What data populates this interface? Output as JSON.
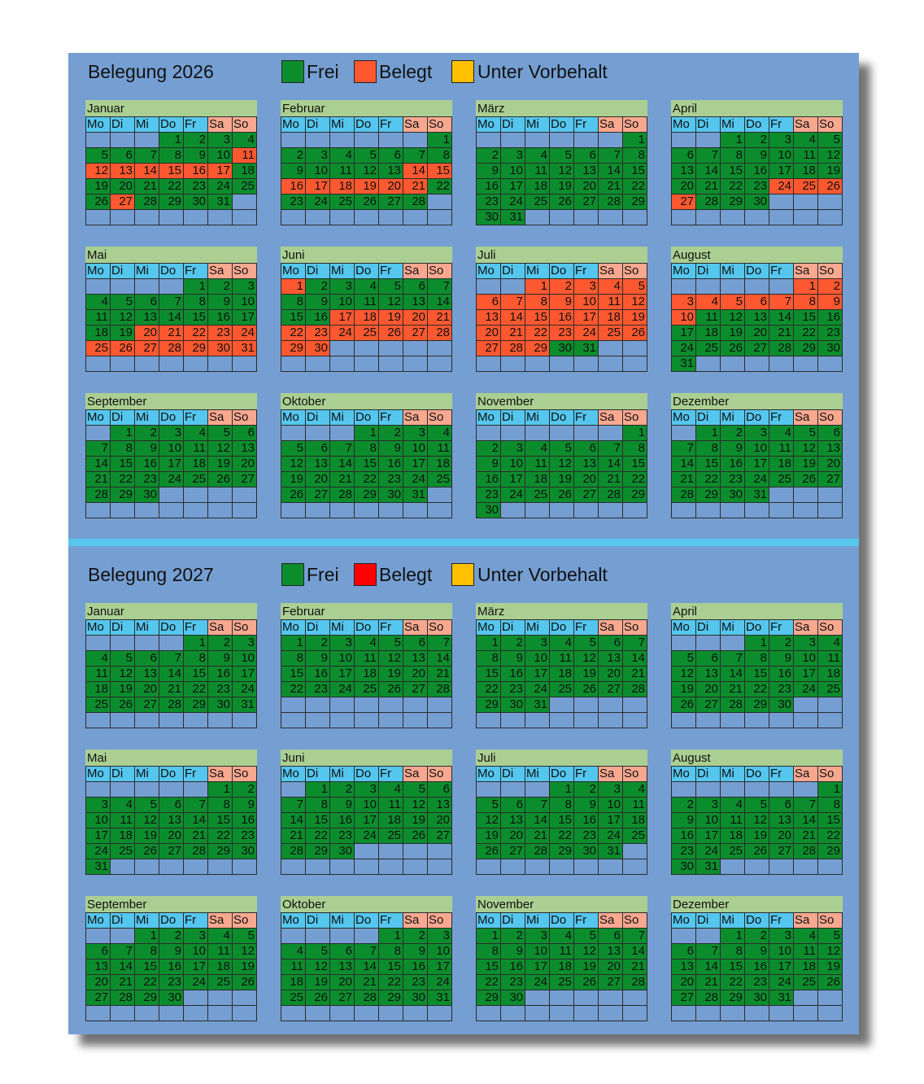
{
  "weekdays": [
    "Mo",
    "Di",
    "Mi",
    "Do",
    "Fr",
    "Sa",
    "So"
  ],
  "colors": {
    "sheet_bg": "#759fd2",
    "month_header": "#abcf92",
    "weekday_header": "#55c6ee",
    "weekend_header": "#f9a890",
    "separator": "#55c6ee",
    "free": "#0c8d2d",
    "busy_2026": "#fe5830",
    "busy_2027": "#ff0000",
    "reserved": "#ffc000"
  },
  "years": [
    {
      "year": 2026,
      "title": "Belegung 2026",
      "legend": {
        "free": "Frei",
        "busy": "Belegt",
        "reserved": "Unter Vorbehalt"
      },
      "months": [
        {
          "name": "Januar",
          "days": 31,
          "offset": 3,
          "busy": [
            [
              11,
              17
            ],
            [
              27,
              27
            ]
          ]
        },
        {
          "name": "Februar",
          "days": 28,
          "offset": 6,
          "busy": [
            [
              14,
              15
            ],
            [
              16,
              21
            ]
          ]
        },
        {
          "name": "März",
          "days": 31,
          "offset": 6,
          "busy": []
        },
        {
          "name": "April",
          "days": 30,
          "offset": 2,
          "busy": [
            [
              24,
              27
            ]
          ]
        },
        {
          "name": "Mai",
          "days": 31,
          "offset": 4,
          "busy": [
            [
              20,
              31
            ]
          ]
        },
        {
          "name": "Juni",
          "days": 30,
          "offset": 0,
          "busy": [
            [
              1,
              1
            ],
            [
              17,
              30
            ]
          ]
        },
        {
          "name": "Juli",
          "days": 31,
          "offset": 2,
          "busy": [
            [
              1,
              29
            ]
          ]
        },
        {
          "name": "August",
          "days": 31,
          "offset": 5,
          "busy": [
            [
              1,
              10
            ]
          ]
        },
        {
          "name": "September",
          "days": 30,
          "offset": 1,
          "busy": []
        },
        {
          "name": "Oktober",
          "days": 31,
          "offset": 3,
          "busy": []
        },
        {
          "name": "November",
          "days": 30,
          "offset": 6,
          "busy": []
        },
        {
          "name": "Dezember",
          "days": 31,
          "offset": 1,
          "busy": []
        }
      ]
    },
    {
      "year": 2027,
      "title": "Belegung 2027",
      "legend": {
        "free": "Frei",
        "busy": "Belegt",
        "reserved": "Unter Vorbehalt"
      },
      "months": [
        {
          "name": "Januar",
          "days": 31,
          "offset": 4,
          "busy": []
        },
        {
          "name": "Februar",
          "days": 28,
          "offset": 0,
          "busy": []
        },
        {
          "name": "März",
          "days": 31,
          "offset": 0,
          "busy": []
        },
        {
          "name": "April",
          "days": 30,
          "offset": 3,
          "busy": []
        },
        {
          "name": "Mai",
          "days": 31,
          "offset": 5,
          "busy": []
        },
        {
          "name": "Juni",
          "days": 30,
          "offset": 1,
          "busy": []
        },
        {
          "name": "Juli",
          "days": 31,
          "offset": 3,
          "busy": []
        },
        {
          "name": "August",
          "days": 31,
          "offset": 6,
          "busy": []
        },
        {
          "name": "September",
          "days": 30,
          "offset": 2,
          "busy": []
        },
        {
          "name": "Oktober",
          "days": 31,
          "offset": 4,
          "busy": []
        },
        {
          "name": "November",
          "days": 30,
          "offset": 0,
          "busy": []
        },
        {
          "name": "Dezember",
          "days": 31,
          "offset": 2,
          "busy": []
        }
      ]
    }
  ]
}
